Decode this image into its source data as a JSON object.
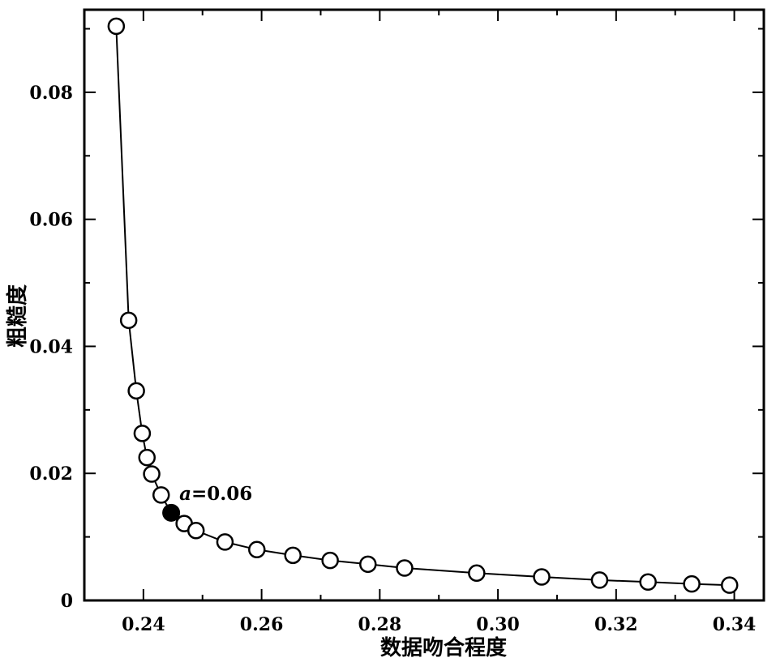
{
  "chart_data": {
    "type": "scatter",
    "title": "",
    "xlabel": "数据吻合程度",
    "ylabel": "粗糙度",
    "xlim": [
      0.23,
      0.345
    ],
    "ylim": [
      0,
      0.093
    ],
    "xticks": [
      "0.24",
      "0.26",
      "0.28",
      "0.30",
      "0.32",
      "0.34"
    ],
    "yticks": [
      "0",
      "0.02",
      "0.04",
      "0.06",
      "0.08"
    ],
    "grid": false,
    "series": [
      {
        "marker": "open-circle",
        "line": true,
        "points": [
          {
            "x": 0.2354,
            "y": 0.0904
          },
          {
            "x": 0.2375,
            "y": 0.0441
          },
          {
            "x": 0.2388,
            "y": 0.033
          },
          {
            "x": 0.2398,
            "y": 0.0263
          },
          {
            "x": 0.2406,
            "y": 0.0225
          },
          {
            "x": 0.2414,
            "y": 0.0199
          },
          {
            "x": 0.243,
            "y": 0.0166
          },
          {
            "x": 0.2447,
            "y": 0.0138
          },
          {
            "x": 0.2469,
            "y": 0.0121
          },
          {
            "x": 0.2489,
            "y": 0.011
          },
          {
            "x": 0.2538,
            "y": 0.0092
          },
          {
            "x": 0.2592,
            "y": 0.008
          },
          {
            "x": 0.2653,
            "y": 0.0071
          },
          {
            "x": 0.2716,
            "y": 0.0063
          },
          {
            "x": 0.278,
            "y": 0.0057
          },
          {
            "x": 0.2842,
            "y": 0.0051
          },
          {
            "x": 0.2964,
            "y": 0.0043
          },
          {
            "x": 0.3074,
            "y": 0.0037
          },
          {
            "x": 0.3172,
            "y": 0.0032
          },
          {
            "x": 0.3254,
            "y": 0.0029
          },
          {
            "x": 0.3328,
            "y": 0.0026
          },
          {
            "x": 0.3392,
            "y": 0.0024
          }
        ]
      }
    ],
    "highlight": {
      "x": 0.2447,
      "y": 0.0138,
      "marker": "filled-circle",
      "label": "a=0.06"
    }
  }
}
